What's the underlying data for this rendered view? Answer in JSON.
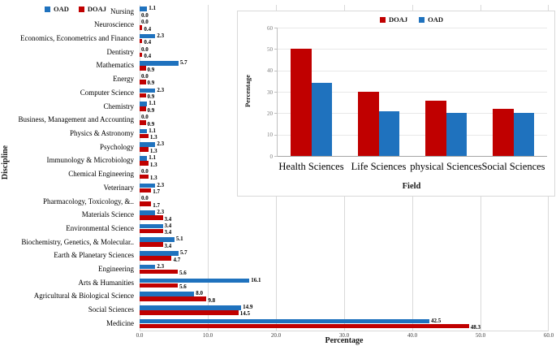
{
  "colors": {
    "oad_blue": "#1F72BE",
    "doaj_red": "#C00000",
    "main_gridline": "#D9D9D9",
    "inset_gridline": "#E8E8E8",
    "tick_text": "#404040",
    "inset_tick_text": "#7F7F7F"
  },
  "main_legend": {
    "items": [
      {
        "label": "OAD"
      },
      {
        "label": "DOAJ"
      }
    ]
  },
  "inset_legend": {
    "items": [
      {
        "label": "DOAJ"
      },
      {
        "label": "OAD"
      }
    ]
  },
  "chart_data": [
    {
      "type": "bar",
      "orientation": "horizontal",
      "xlabel": "Percentage",
      "ylabel": "Discipline",
      "xlim": [
        0,
        60
      ],
      "xticks": [
        "0.0",
        "10.0",
        "20.0",
        "30.0",
        "40.0",
        "50.0",
        "60.0"
      ],
      "grid": "vertical",
      "legend_position": "top-left",
      "value_label_format": "one-decimal-bold",
      "categories": [
        "Nursing",
        "Neuroscience",
        "Economics, Econometrics and Finance",
        "Dentistry",
        "Mathematics",
        "Energy",
        "Computer Science",
        "Chemistry",
        "Business, Management and Accounting",
        "Physics & Astronomy",
        "Psychology",
        "Immunology & Microbiology",
        "Chemical Engineering",
        "Veterinary",
        "Pharmacology, Toxicology, &..",
        "Materials Science",
        "Environmental Science",
        "Biochemistry, Genetics, & Molecular..",
        "Earth & Planetary Sciences",
        "Engineering",
        "Arts & Humanities",
        "Agricultural & Biological Science",
        "Social Sciences",
        "Medicine"
      ],
      "series": [
        {
          "name": "OAD",
          "color": "#1F72BE",
          "values": [
            1.1,
            0.0,
            2.3,
            0.0,
            5.7,
            0.0,
            2.3,
            1.1,
            0.0,
            1.1,
            2.3,
            1.1,
            0.0,
            2.3,
            0.0,
            2.3,
            3.4,
            5.1,
            5.7,
            2.3,
            16.1,
            8.0,
            14.9,
            42.5
          ]
        },
        {
          "name": "DOAJ",
          "color": "#C00000",
          "values": [
            0.0,
            0.4,
            0.4,
            0.4,
            0.9,
            0.9,
            0.9,
            0.9,
            0.9,
            1.3,
            1.3,
            1.3,
            1.3,
            1.7,
            1.7,
            3.4,
            3.4,
            3.4,
            4.7,
            5.6,
            5.6,
            9.8,
            14.5,
            48.3
          ]
        }
      ]
    },
    {
      "type": "bar",
      "orientation": "vertical",
      "xlabel": "Field",
      "ylabel": "Percentage",
      "ylim": [
        0,
        60
      ],
      "yticks": [
        0,
        10,
        20,
        30,
        40,
        50,
        60
      ],
      "grid": "horizontal",
      "legend_position": "top-center",
      "categories": [
        "Health Sciences",
        "Life Sciences",
        "physical Sciences",
        "Social Sciences"
      ],
      "series": [
        {
          "name": "DOAJ",
          "color": "#C00000",
          "values": [
            50,
            30,
            26,
            22
          ]
        },
        {
          "name": "OAD",
          "color": "#1F72BE",
          "values": [
            34,
            21,
            20,
            20
          ]
        }
      ]
    }
  ]
}
